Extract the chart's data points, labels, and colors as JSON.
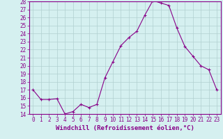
{
  "x": [
    0,
    1,
    2,
    3,
    4,
    5,
    6,
    7,
    8,
    9,
    10,
    11,
    12,
    13,
    14,
    15,
    16,
    17,
    18,
    19,
    20,
    21,
    22,
    23
  ],
  "y": [
    17.0,
    15.8,
    15.8,
    15.9,
    14.0,
    14.3,
    15.2,
    14.8,
    15.2,
    18.5,
    20.5,
    22.5,
    23.5,
    24.3,
    26.3,
    28.1,
    27.8,
    27.5,
    24.7,
    22.4,
    21.2,
    20.0,
    19.5,
    17.0
  ],
  "xlabel": "Windchill (Refroidissement éolien,°C)",
  "xlim": [
    -0.5,
    23.5
  ],
  "ylim": [
    14,
    28
  ],
  "yticks": [
    14,
    15,
    16,
    17,
    18,
    19,
    20,
    21,
    22,
    23,
    24,
    25,
    26,
    27,
    28
  ],
  "xticks": [
    0,
    1,
    2,
    3,
    4,
    5,
    6,
    7,
    8,
    9,
    10,
    11,
    12,
    13,
    14,
    15,
    16,
    17,
    18,
    19,
    20,
    21,
    22,
    23
  ],
  "line_color": "#880088",
  "marker": "+",
  "marker_size": 3,
  "bg_color": "#d5f0f0",
  "grid_color": "#b0d0d0",
  "axis_label_color": "#880088",
  "tick_label_color": "#880088",
  "border_color": "#880088",
  "xlabel_fontsize": 6.5,
  "tick_fontsize": 5.5
}
